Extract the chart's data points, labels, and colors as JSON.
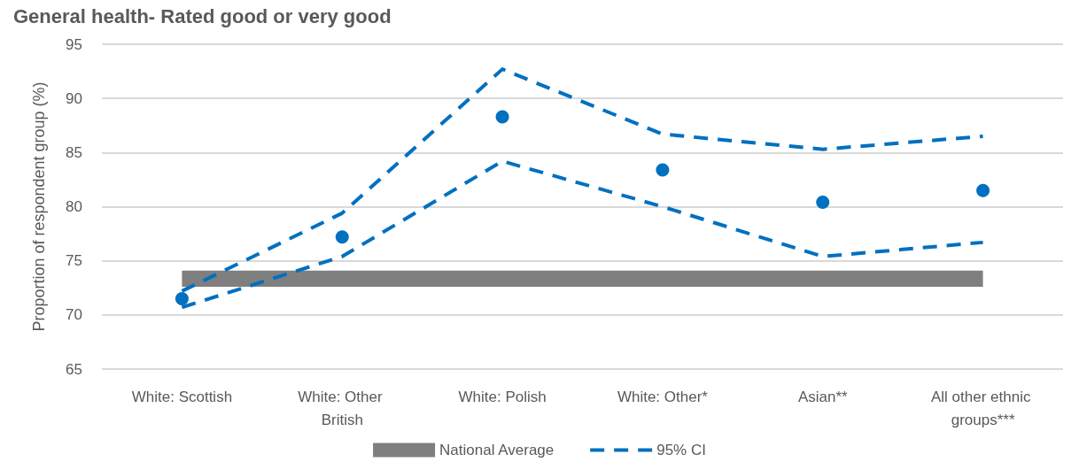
{
  "chart_data": {
    "type": "line",
    "title": "General health- Rated good or very good",
    "ylabel": "Proportion of respondent group (%)",
    "categories": [
      "White: Scottish",
      "White: Other British",
      "White: Polish",
      "White: Other*",
      "Asian**",
      "All other ethnic groups***"
    ],
    "series": [
      {
        "type": "scatter",
        "color": "#0070c0",
        "marker": "circle",
        "values": [
          71.5,
          77.2,
          88.3,
          83.4,
          80.4,
          81.5
        ]
      },
      {
        "name": "95% CI",
        "color": "#0070c0",
        "line_style": "dashed",
        "marker": "none",
        "values": [
          72.2,
          79.4,
          92.7,
          86.7,
          85.3,
          86.5
        ]
      },
      {
        "color": "#0070c0",
        "line_style": "dashed",
        "marker": "none",
        "values": [
          70.7,
          75.4,
          84.2,
          80.0,
          75.4,
          76.7
        ]
      }
    ],
    "bands": [
      {
        "axis": "y",
        "from": 72.6,
        "to": 74.1,
        "label": "National Average",
        "color": "#7f7f7f"
      }
    ],
    "ylim": [
      65,
      95
    ],
    "yticks": [
      65,
      70,
      75,
      80,
      85,
      90,
      95
    ],
    "grid": "y",
    "legend": "bottom"
  }
}
